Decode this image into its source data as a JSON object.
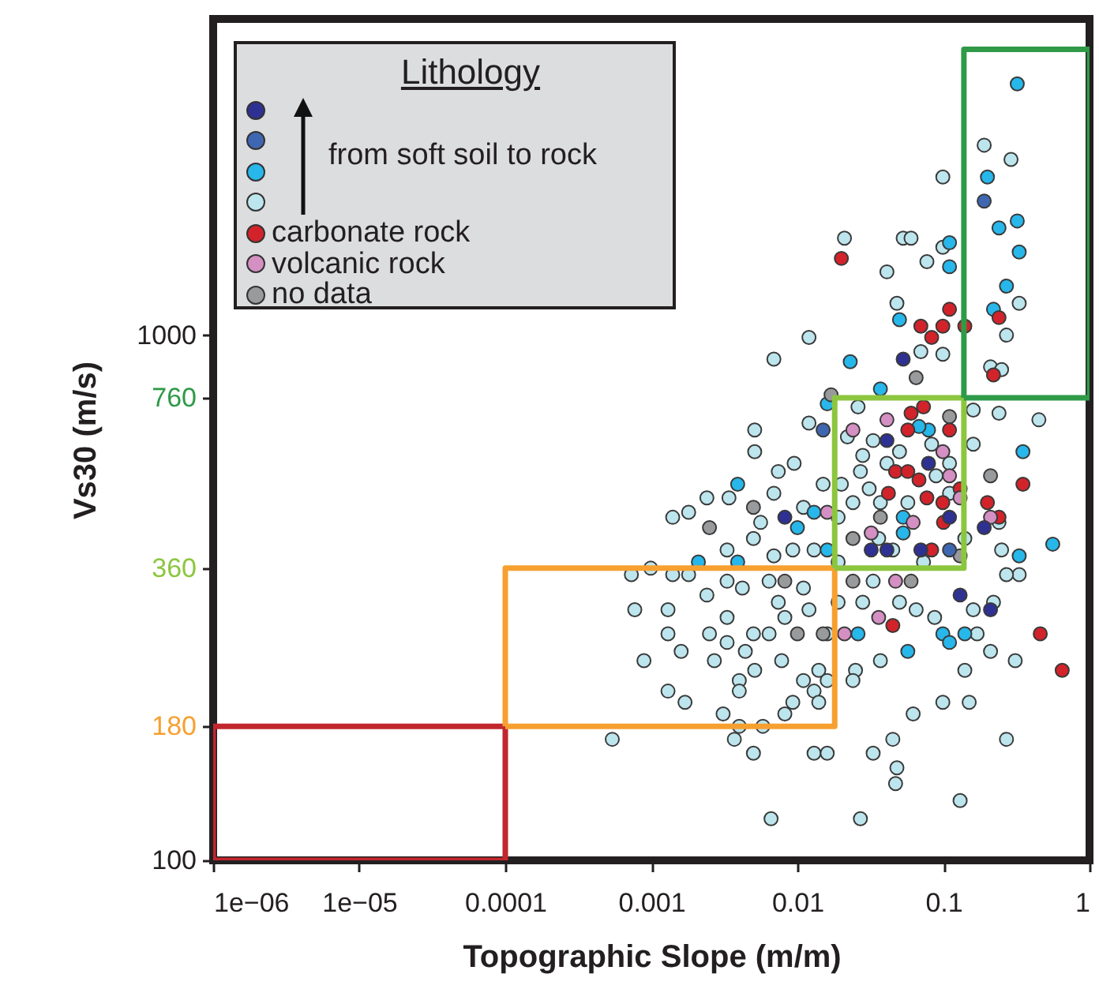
{
  "chart_data": {
    "type": "scatter",
    "xlabel": "Topographic Slope (m/m)",
    "ylabel": "Vs30 (m/s)",
    "legend_title": "Lithology",
    "annotations": [
      "from soft soil to rock"
    ],
    "log": "xy",
    "xlim": [
      1e-06,
      1
    ],
    "ylim": [
      100,
      4000
    ],
    "xticks": [
      {
        "value": 1e-06,
        "label": "1e−06"
      },
      {
        "value": 1e-05,
        "label": "1e−05"
      },
      0.0001,
      0.001,
      0.01,
      0.1,
      1
    ],
    "yticks": [
      100,
      180,
      360,
      760,
      1000
    ],
    "legend": "top left",
    "marker": "circle",
    "grid": false,
    "series": [
      {
        "color": "#2e3192",
        "x": [
          0.0082,
          0.053,
          0.041,
          0.079,
          0.032,
          0.041,
          0.07,
          0.13,
          0.21,
          0.19,
          0.11
        ],
        "values": [
          450,
          900,
          630,
          570,
          390,
          390,
          390,
          320,
          300,
          430,
          450
        ]
      },
      {
        "color": "#3f67b1",
        "x": [
          0.015,
          0.11,
          0.19
        ],
        "values": [
          660,
          390,
          1800
        ]
      },
      {
        "color": "#27b7ea",
        "x": [
          0.0039,
          0.01,
          0.013,
          0.0021,
          0.0039,
          0.016,
          0.016,
          0.05,
          0.023,
          0.037,
          0.079,
          0.053,
          0.053,
          0.56,
          0.33,
          0.35,
          0.099,
          0.11,
          0.14,
          0.057,
          0.026,
          0.068,
          0.32,
          0.2,
          0.24,
          0.32,
          0.33,
          0.27,
          0.11,
          0.11,
          0.22
        ],
        "values": [
          520,
          430,
          460,
          370,
          370,
          390,
          740,
          1070,
          890,
          790,
          660,
          450,
          420,
          400,
          380,
          600,
          270,
          260,
          270,
          250,
          270,
          670,
          3010,
          2000,
          1600,
          1650,
          1440,
          1240,
          1500,
          1350,
          1120
        ]
      },
      {
        "color": "#bde5ed",
        "x": [
          0.012,
          0.0069,
          0.0051,
          0.0051,
          0.012,
          0.0074,
          0.0095,
          0.0024,
          0.0018,
          0.0014,
          0.0034,
          0.0056,
          0.0069,
          0.011,
          0.015,
          0.005,
          0.0033,
          0.0069,
          0.0093,
          0.013,
          0.00099,
          0.00073,
          0.0014,
          0.0018,
          0.0033,
          0.0042,
          0.0064,
          0.011,
          0.0024,
          0.00077,
          0.0013,
          0.0013,
          0.0025,
          0.0033,
          0.005,
          0.0074,
          0.0082,
          0.012,
          0.0016,
          0.0033,
          0.0044,
          0.0064,
          0.00089,
          0.0027,
          0.0078,
          0.014,
          0.0051,
          0.004,
          0.004,
          0.011,
          0.0013,
          0.0017,
          0.0093,
          0.013,
          0.0031,
          0.0082,
          0.014,
          0.00054,
          0.004,
          0.0058,
          0.005,
          0.013,
          0.0066,
          0.0037,
          0.27,
          0.099,
          0.07,
          0.21,
          0.25,
          0.16,
          0.24,
          0.45,
          0.16,
          0.026,
          0.033,
          0.022,
          0.028,
          0.05,
          0.02,
          0.031,
          0.037,
          0.024,
          0.019,
          0.089,
          0.11,
          0.24,
          0.25,
          0.33,
          0.27,
          0.22,
          0.16,
          0.17,
          0.087,
          0.065,
          0.033,
          0.028,
          0.019,
          0.05,
          0.037,
          0.025,
          0.024,
          0.14,
          0.21,
          0.31,
          0.062,
          0.099,
          0.15,
          0.045,
          0.033,
          0.048,
          0.047,
          0.027,
          0.13,
          0.27,
          0.016,
          0.016,
          0.016,
          0.19,
          0.29,
          0.099,
          0.021,
          0.053,
          0.06,
          0.099,
          0.077,
          0.041,
          0.048,
          0.33,
          0.027,
          0.041,
          0.057,
          0.083,
          0.036,
          0.073,
          0.11,
          0.045,
          0.019,
          0.14
        ],
        "values": [
          990,
          900,
          660,
          600,
          680,
          550,
          570,
          490,
          460,
          450,
          490,
          440,
          500,
          470,
          520,
          410,
          390,
          380,
          390,
          390,
          360,
          350,
          350,
          350,
          340,
          330,
          340,
          330,
          320,
          300,
          300,
          270,
          270,
          290,
          270,
          310,
          290,
          300,
          250,
          260,
          250,
          270,
          240,
          240,
          240,
          230,
          230,
          220,
          210,
          220,
          210,
          200,
          200,
          210,
          190,
          190,
          200,
          170,
          180,
          180,
          160,
          160,
          120,
          170,
          1000,
          920,
          930,
          870,
          860,
          720,
          710,
          690,
          620,
          730,
          630,
          640,
          590,
          600,
          520,
          510,
          480,
          480,
          450,
          540,
          500,
          440,
          390,
          350,
          350,
          310,
          300,
          270,
          290,
          300,
          340,
          310,
          310,
          310,
          240,
          230,
          220,
          230,
          250,
          240,
          190,
          200,
          200,
          170,
          160,
          150,
          140,
          120,
          130,
          170,
          270,
          220,
          160,
          2300,
          2160,
          2000,
          1530,
          1530,
          1530,
          1470,
          1380,
          1320,
          1150,
          1150,
          550,
          570,
          480,
          620,
          410,
          370,
          570,
          390,
          370,
          410
        ]
      },
      {
        "name": "carbonate rock",
        "color": "#d2232a",
        "x": [
          0.07,
          0.099,
          0.083,
          0.14,
          0.24,
          0.22,
          0.073,
          0.06,
          0.057,
          0.047,
          0.057,
          0.068,
          0.042,
          0.077,
          0.099,
          0.1,
          0.083,
          0.13,
          0.2,
          0.24,
          0.35,
          0.045,
          0.46,
          0.65,
          0.11,
          0.02,
          0.11
        ],
        "values": [
          1040,
          1040,
          990,
          1040,
          1080,
          840,
          730,
          710,
          660,
          550,
          550,
          530,
          500,
          490,
          480,
          440,
          390,
          510,
          480,
          450,
          520,
          280,
          270,
          230,
          660,
          1400,
          1120
        ]
      },
      {
        "name": "volcanic rock",
        "color": "#d48fc3",
        "x": [
          0.016,
          0.024,
          0.041,
          0.099,
          0.11,
          0.13,
          0.032,
          0.062,
          0.047,
          0.036,
          0.021,
          0.21
        ],
        "values": [
          460,
          660,
          690,
          600,
          540,
          490,
          420,
          440,
          340,
          290,
          270,
          450
        ]
      },
      {
        "name": "no data",
        "color": "#999a9c",
        "x": [
          0.005,
          0.0025,
          0.0082,
          0.01,
          0.015,
          0.017,
          0.065,
          0.11,
          0.21,
          0.037,
          0.024,
          0.13,
          0.06,
          0.024
        ],
        "values": [
          470,
          430,
          340,
          270,
          270,
          770,
          830,
          700,
          540,
          450,
          410,
          380,
          340,
          340
        ]
      },
      {
        "type": "step",
        "marker": "none",
        "color": "#c1272d",
        "x": [
          1e-06,
          0.0001
        ],
        "values": [
          100,
          180
        ]
      },
      {
        "type": "step",
        "marker": "none",
        "color": "#c1272d",
        "x": [
          0.0001,
          1e-06
        ],
        "values": [
          180,
          100
        ]
      },
      {
        "type": "step",
        "marker": "none",
        "color": "#f7a030",
        "x": [
          0.0001,
          0.018
        ],
        "values": [
          180,
          360
        ]
      },
      {
        "type": "step",
        "marker": "none",
        "color": "#f7a030",
        "x": [
          0.018,
          0.0001
        ],
        "values": [
          360,
          180
        ]
      },
      {
        "type": "step",
        "marker": "none",
        "color": "#8cc63f",
        "x": [
          0.018,
          0.138
        ],
        "values": [
          360,
          760
        ]
      },
      {
        "type": "step",
        "marker": "none",
        "color": "#8cc63f",
        "x": [
          0.138,
          0.018
        ],
        "values": [
          760,
          360
        ]
      },
      {
        "type": "step",
        "marker": "none",
        "color": "#2f9a48",
        "x": [
          0.138,
          1
        ],
        "values": [
          760,
          3500
        ]
      },
      {
        "type": "step",
        "marker": "none",
        "color": "#2f9a48",
        "x": [
          1,
          0.138
        ],
        "values": [
          3500,
          760
        ]
      }
    ]
  }
}
